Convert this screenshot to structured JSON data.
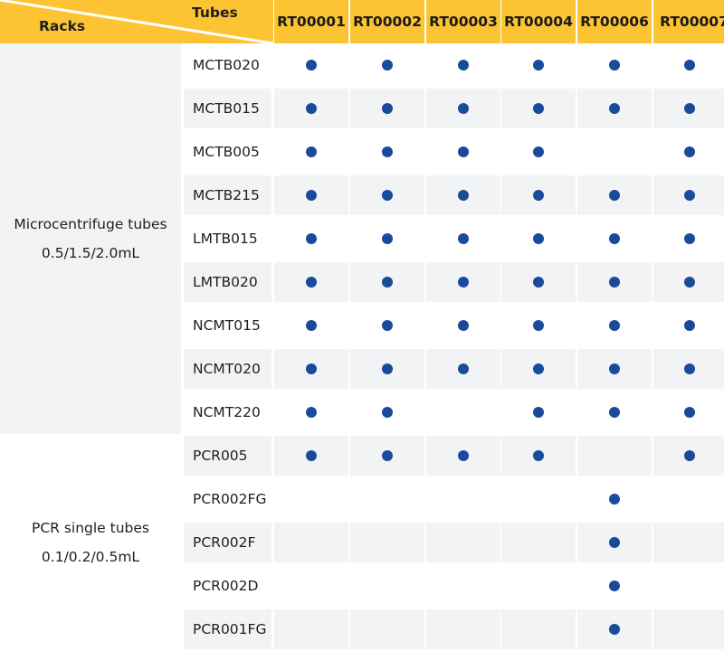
{
  "header": {
    "racks_label": "Racks",
    "tubes_label": "Tubes"
  },
  "columns": [
    "RT00001",
    "RT00002",
    "RT00003",
    "RT00004",
    "RT00006",
    "RT00007"
  ],
  "categories": [
    {
      "line1": "Microcentrifuge tubes",
      "line2": "0.5/1.5/2.0mL",
      "rows": 9
    },
    {
      "line1": "PCR single tubes",
      "line2": "0.1/0.2/0.5mL",
      "rows": 5
    }
  ],
  "rows": [
    {
      "tube": "MCTB020",
      "compat": [
        true,
        true,
        true,
        true,
        true,
        true
      ]
    },
    {
      "tube": "MCTB015",
      "compat": [
        true,
        true,
        true,
        true,
        true,
        true
      ]
    },
    {
      "tube": "MCTB005",
      "compat": [
        true,
        true,
        true,
        true,
        false,
        true
      ]
    },
    {
      "tube": "MCTB215",
      "compat": [
        true,
        true,
        true,
        true,
        true,
        true
      ]
    },
    {
      "tube": "LMTB015",
      "compat": [
        true,
        true,
        true,
        true,
        true,
        true
      ]
    },
    {
      "tube": "LMTB020",
      "compat": [
        true,
        true,
        true,
        true,
        true,
        true
      ]
    },
    {
      "tube": "NCMT015",
      "compat": [
        true,
        true,
        true,
        true,
        true,
        true
      ]
    },
    {
      "tube": "NCMT020",
      "compat": [
        true,
        true,
        true,
        true,
        true,
        true
      ]
    },
    {
      "tube": "NCMT220",
      "compat": [
        true,
        true,
        false,
        true,
        true,
        true
      ]
    },
    {
      "tube": "PCR005",
      "compat": [
        true,
        true,
        true,
        true,
        false,
        true
      ]
    },
    {
      "tube": "PCR002FG",
      "compat": [
        false,
        false,
        false,
        false,
        true,
        false
      ]
    },
    {
      "tube": "PCR002F",
      "compat": [
        false,
        false,
        false,
        false,
        true,
        false
      ]
    },
    {
      "tube": "PCR002D",
      "compat": [
        false,
        false,
        false,
        false,
        true,
        false
      ]
    },
    {
      "tube": "PCR001FG",
      "compat": [
        false,
        false,
        false,
        false,
        true,
        false
      ]
    }
  ],
  "colors": {
    "header": "#fcc433",
    "dot": "#1a4a9a",
    "stripe": "#f2f3f5"
  }
}
